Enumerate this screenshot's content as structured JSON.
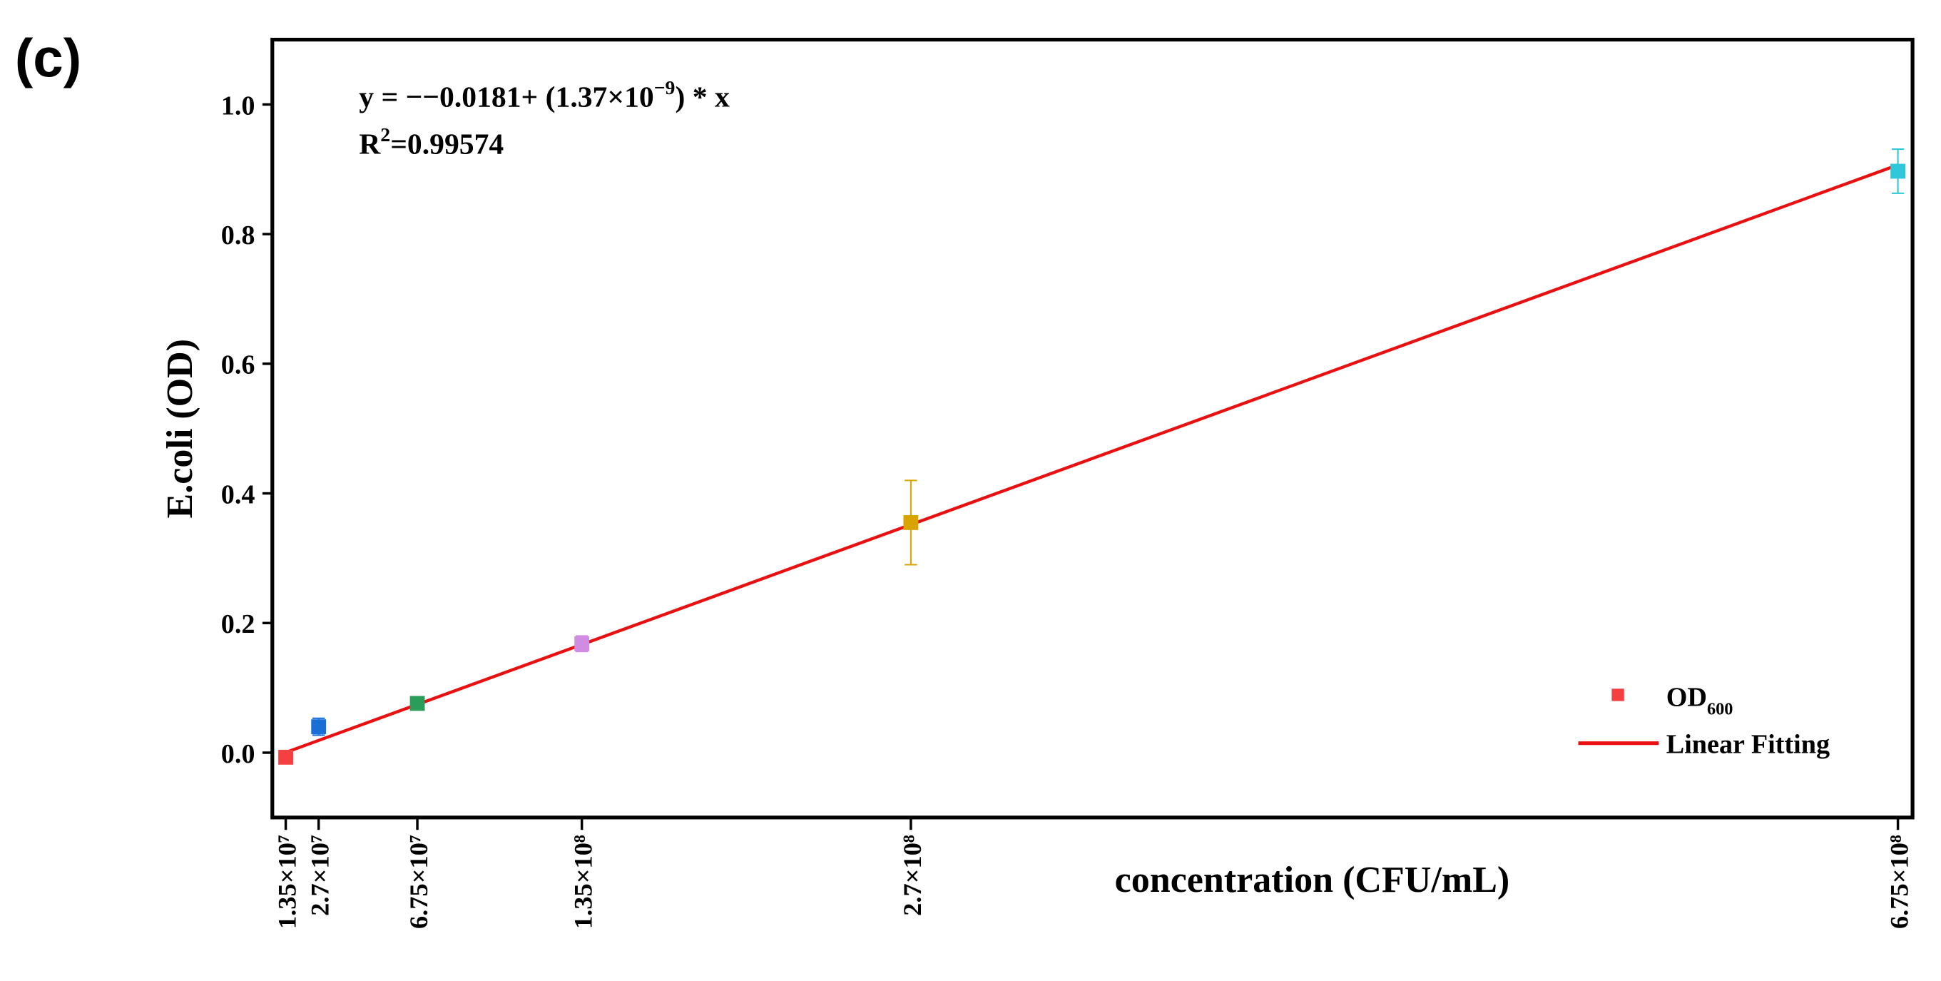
{
  "panel_label": "(c)",
  "chart_data": {
    "type": "scatter",
    "xlabel": "concentration (CFU/mL)",
    "ylabel": "E.coli (OD)",
    "equation": {
      "text": "y =  −−0.0181+ (1.37×10",
      "exponent": "−9",
      "tail": ") * x"
    },
    "r_squared": {
      "base": "R",
      "exponent": "2",
      "tail": "=0.99574"
    },
    "xlim": [
      8000000,
      681000000
    ],
    "ylim": [
      -0.1,
      1.1
    ],
    "xticks": [
      {
        "value": 13500000,
        "label": "1.35×10⁷"
      },
      {
        "value": 27000000,
        "label": "2.7×10⁷"
      },
      {
        "value": 67500000,
        "label": "6.75×10⁷"
      },
      {
        "value": 135000000,
        "label": "1.35×10⁸"
      },
      {
        "value": 270000000,
        "label": "2.7×10⁸"
      },
      {
        "value": 675000000,
        "label": "6.75×10⁸"
      }
    ],
    "yticks": [
      {
        "value": 0,
        "label": "0.0"
      },
      {
        "value": 0.2,
        "label": "0.2"
      },
      {
        "value": 0.4,
        "label": "0.4"
      },
      {
        "value": 0.6,
        "label": "0.6"
      },
      {
        "value": 0.8,
        "label": "0.8"
      },
      {
        "value": 1,
        "label": "1.0"
      }
    ],
    "series": [
      {
        "name": "OD",
        "name_subscript": "600",
        "legend_color": "#f44040",
        "x": [
          13500000,
          27000000,
          67500000,
          135000000,
          270000000,
          675000000
        ],
        "values": [
          -0.007,
          0.04,
          0.076,
          0.168,
          0.355,
          0.897
        ],
        "errors": [
          0.004,
          0.013,
          0.005,
          0.012,
          0.065,
          0.034
        ],
        "colors": [
          "#f44040",
          "#1a6fd6",
          "#2a9d5a",
          "#d08ce0",
          "#d9a300",
          "#2ec8d8"
        ]
      }
    ],
    "fit": {
      "name": "Linear Fitting",
      "color": "#e81010",
      "x": [
        13500000,
        675000000
      ],
      "values": [
        0.0004,
        0.9067
      ]
    },
    "legend": "lower right"
  }
}
